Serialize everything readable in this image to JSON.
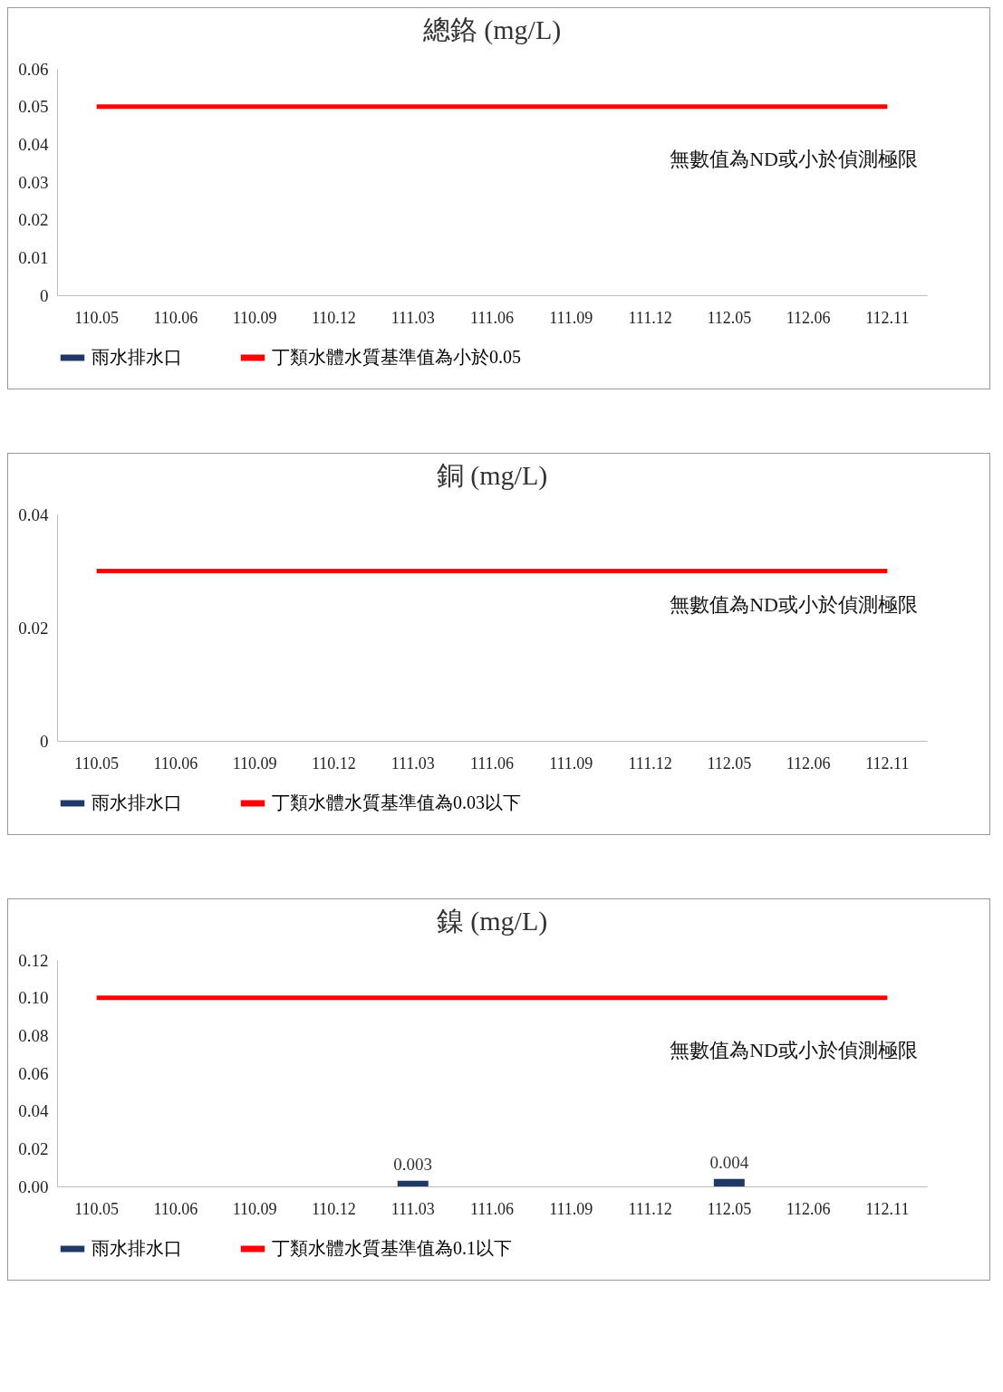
{
  "chart_data": [
    {
      "type": "bar",
      "title": "總鉻 (mg/L)",
      "categories": [
        "110.05",
        "110.06",
        "110.09",
        "110.12",
        "111.03",
        "111.06",
        "111.09",
        "111.12",
        "112.05",
        "112.06",
        "112.11"
      ],
      "series": [
        {
          "name": "雨水排水口",
          "color": "#1f3864",
          "values": [
            null,
            null,
            null,
            null,
            null,
            null,
            null,
            null,
            null,
            null,
            null
          ]
        },
        {
          "name": "丁類水體水質基準值為小於0.05",
          "type": "line",
          "color": "#ff0000",
          "values": [
            0.05,
            0.05,
            0.05,
            0.05,
            0.05,
            0.05,
            0.05,
            0.05,
            0.05,
            0.05,
            0.05
          ]
        }
      ],
      "ylim": [
        0,
        0.06
      ],
      "yticks": [
        0,
        0.01,
        0.02,
        0.03,
        0.04,
        0.05,
        0.06
      ],
      "grid": false,
      "legend": "bottom",
      "annotations": [
        "無數值為ND或小於偵測極限"
      ]
    },
    {
      "type": "bar",
      "title": "銅 (mg/L)",
      "categories": [
        "110.05",
        "110.06",
        "110.09",
        "110.12",
        "111.03",
        "111.06",
        "111.09",
        "111.12",
        "112.05",
        "112.06",
        "112.11"
      ],
      "series": [
        {
          "name": "雨水排水口",
          "color": "#1f3864",
          "values": [
            null,
            null,
            null,
            null,
            null,
            null,
            null,
            null,
            null,
            null,
            null
          ]
        },
        {
          "name": "丁類水體水質基準值為0.03以下",
          "type": "line",
          "color": "#ff0000",
          "values": [
            0.03,
            0.03,
            0.03,
            0.03,
            0.03,
            0.03,
            0.03,
            0.03,
            0.03,
            0.03,
            0.03
          ]
        }
      ],
      "ylim": [
        0,
        0.04
      ],
      "yticks": [
        0,
        0.02,
        0.04
      ],
      "grid": false,
      "legend": "bottom",
      "annotations": [
        "無數值為ND或小於偵測極限"
      ]
    },
    {
      "type": "bar",
      "title": "鎳 (mg/L)",
      "categories": [
        "110.05",
        "110.06",
        "110.09",
        "110.12",
        "111.03",
        "111.06",
        "111.09",
        "111.12",
        "112.05",
        "112.06",
        "112.11"
      ],
      "series": [
        {
          "name": "雨水排水口",
          "color": "#1f3864",
          "values": [
            null,
            null,
            null,
            null,
            0.003,
            null,
            null,
            null,
            0.004,
            null,
            null
          ],
          "value_labels": [
            null,
            null,
            null,
            null,
            "0.003",
            null,
            null,
            null,
            "0.004",
            null,
            null
          ]
        },
        {
          "name": "丁類水體水質基準值為0.1以下",
          "type": "line",
          "color": "#ff0000",
          "values": [
            0.1,
            0.1,
            0.1,
            0.1,
            0.1,
            0.1,
            0.1,
            0.1,
            0.1,
            0.1,
            0.1
          ]
        }
      ],
      "ylim": [
        0,
        0.12
      ],
      "yticks": [
        {
          "value": 0,
          "label": "0.00"
        },
        {
          "value": 0.02,
          "label": "0.02"
        },
        {
          "value": 0.04,
          "label": "0.04"
        },
        {
          "value": 0.06,
          "label": "0.06"
        },
        {
          "value": 0.08,
          "label": "0.08"
        },
        {
          "value": 0.1,
          "label": "0.10"
        },
        {
          "value": 0.12,
          "label": "0.12"
        }
      ],
      "grid": false,
      "legend": "bottom",
      "annotations": [
        "無數值為ND或小於偵測極限"
      ]
    }
  ]
}
